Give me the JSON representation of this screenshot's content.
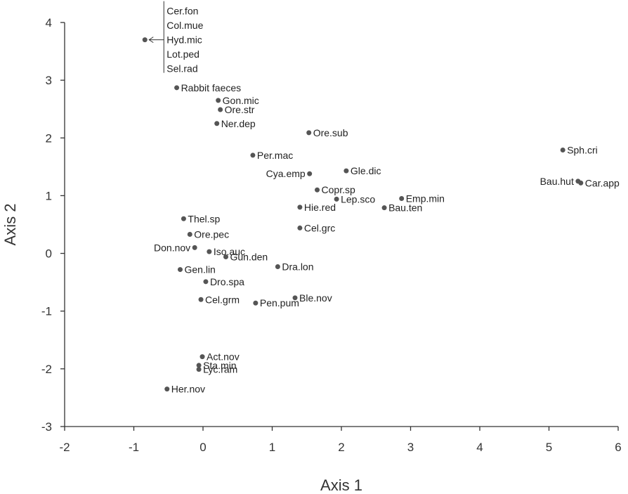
{
  "chart_data": {
    "type": "scatter",
    "xlabel": "Axis 1",
    "ylabel": "Axis 2",
    "xlim": [
      -2,
      6
    ],
    "ylim": [
      -3,
      4
    ],
    "xticks": [
      -2,
      -1,
      0,
      1,
      2,
      3,
      4,
      5,
      6
    ],
    "yticks": [
      -3,
      -2,
      -1,
      0,
      1,
      2,
      3,
      4
    ],
    "grid": false,
    "points": [
      {
        "label": "Rabbit faeces",
        "x": -0.38,
        "y": 2.87,
        "anchor": "right"
      },
      {
        "label": "Gon.mic",
        "x": 0.22,
        "y": 2.65,
        "anchor": "right"
      },
      {
        "label": "Ore.str",
        "x": 0.25,
        "y": 2.49,
        "anchor": "right"
      },
      {
        "label": "Ner.dep",
        "x": 0.2,
        "y": 2.25,
        "anchor": "right"
      },
      {
        "label": "Ore.sub",
        "x": 1.53,
        "y": 2.09,
        "anchor": "right"
      },
      {
        "label": "Sph.cri",
        "x": 5.2,
        "y": 1.79,
        "anchor": "right"
      },
      {
        "label": "Per.mac",
        "x": 0.72,
        "y": 1.7,
        "anchor": "right"
      },
      {
        "label": "Cya.emp",
        "x": 1.54,
        "y": 1.38,
        "anchor": "left"
      },
      {
        "label": "Gle.dic",
        "x": 2.07,
        "y": 1.43,
        "anchor": "right"
      },
      {
        "label": "Bau.hut",
        "x": 5.42,
        "y": 1.25,
        "anchor": "left"
      },
      {
        "label": "Car.app",
        "x": 5.46,
        "y": 1.22,
        "anchor": "right"
      },
      {
        "label": "Copr.sp",
        "x": 1.65,
        "y": 1.1,
        "anchor": "right"
      },
      {
        "label": "Lep.sco",
        "x": 1.93,
        "y": 0.94,
        "anchor": "right"
      },
      {
        "label": "Emp.min",
        "x": 2.87,
        "y": 0.95,
        "anchor": "right"
      },
      {
        "label": "Hie.red",
        "x": 1.4,
        "y": 0.8,
        "anchor": "right"
      },
      {
        "label": "Bau.ten",
        "x": 2.62,
        "y": 0.79,
        "anchor": "right"
      },
      {
        "label": "Thel.sp",
        "x": -0.28,
        "y": 0.6,
        "anchor": "right"
      },
      {
        "label": "Cel.grc",
        "x": 1.4,
        "y": 0.44,
        "anchor": "right"
      },
      {
        "label": "Ore.pec",
        "x": -0.19,
        "y": 0.33,
        "anchor": "right"
      },
      {
        "label": "Don.nov",
        "x": -0.12,
        "y": 0.1,
        "anchor": "left"
      },
      {
        "label": "Iso.auc",
        "x": 0.09,
        "y": 0.03,
        "anchor": "right"
      },
      {
        "label": "Gun.den",
        "x": 0.33,
        "y": -0.06,
        "anchor": "right"
      },
      {
        "label": "Gen.lin",
        "x": -0.33,
        "y": -0.28,
        "anchor": "right"
      },
      {
        "label": "Dra.lon",
        "x": 1.08,
        "y": -0.23,
        "anchor": "right"
      },
      {
        "label": "Dro.spa",
        "x": 0.04,
        "y": -0.49,
        "anchor": "right"
      },
      {
        "label": "Ble.nov",
        "x": 1.33,
        "y": -0.77,
        "anchor": "right"
      },
      {
        "label": "Cel.grm",
        "x": -0.03,
        "y": -0.8,
        "anchor": "right"
      },
      {
        "label": "Pen.pum",
        "x": 0.76,
        "y": -0.86,
        "anchor": "right"
      },
      {
        "label": "Act.nov",
        "x": -0.01,
        "y": -1.79,
        "anchor": "right"
      },
      {
        "label": "Sta.min",
        "x": -0.06,
        "y": -1.94,
        "anchor": "right"
      },
      {
        "label": "Lyc.ram",
        "x": -0.06,
        "y": -2.01,
        "anchor": "right"
      },
      {
        "label": "Her.nov",
        "x": -0.52,
        "y": -2.35,
        "anchor": "right"
      }
    ],
    "grouped_point": {
      "x": -0.84,
      "y": 3.7,
      "labels": [
        "Cer.fon",
        "Col.mue",
        "Hyd.mic",
        "Lot.ped",
        "Sel.rad"
      ]
    }
  }
}
